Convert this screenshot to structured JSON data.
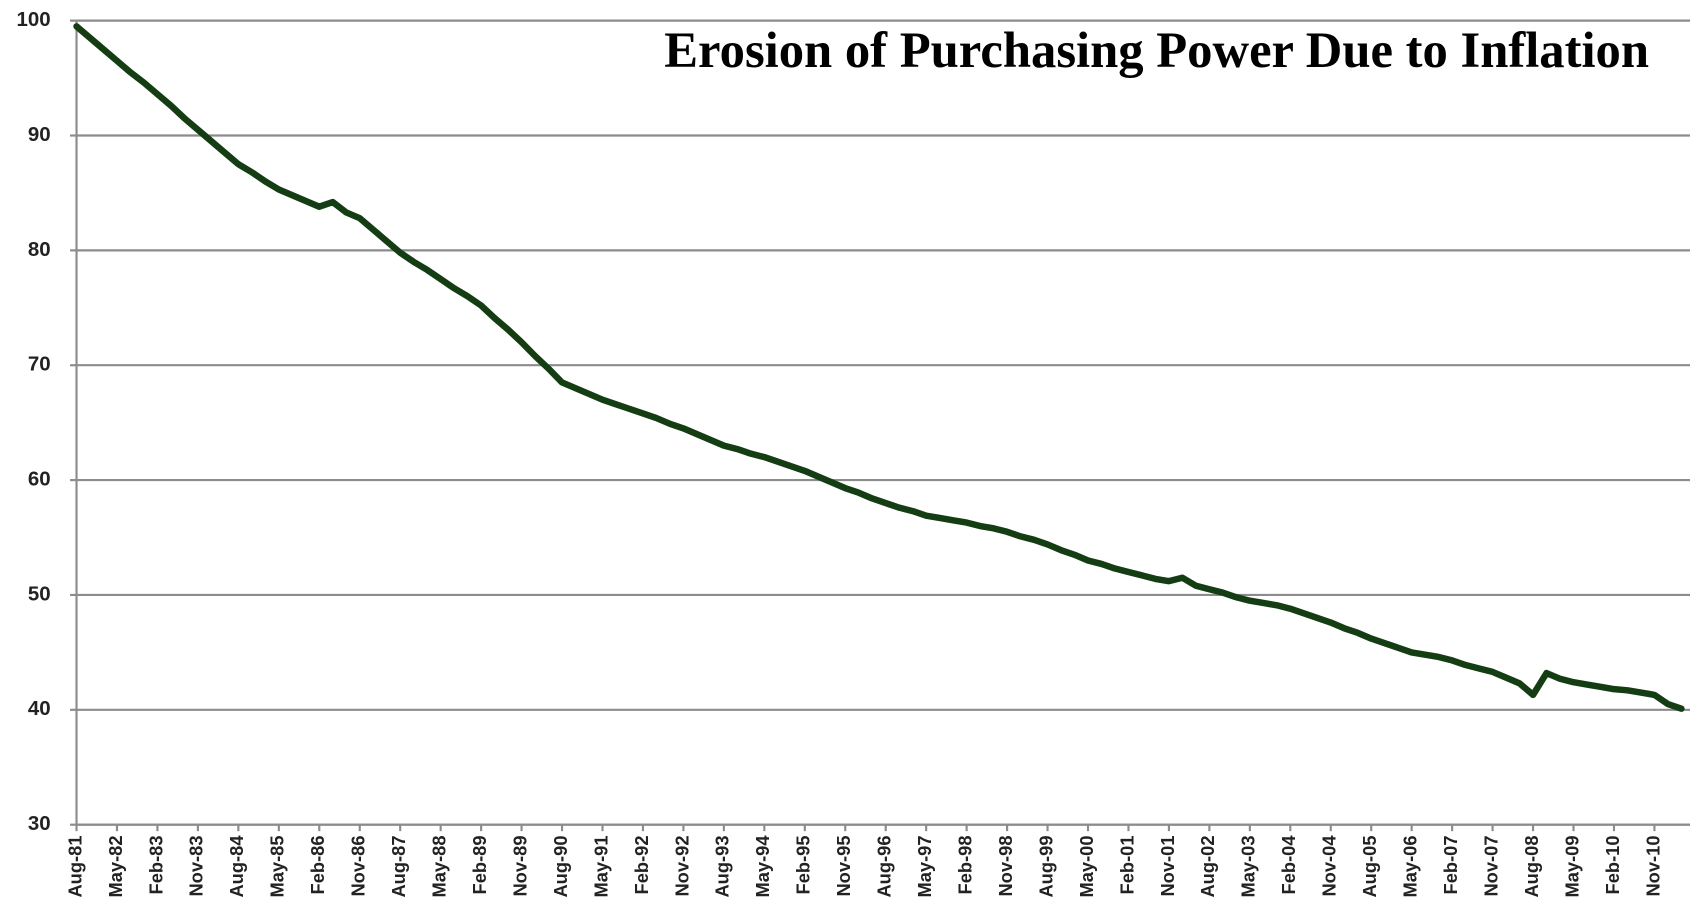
{
  "chart_data": {
    "type": "line",
    "title": "Erosion of Purchasing Power Due to Inflation",
    "categories": [
      "Aug-81",
      null,
      null,
      "May-82",
      null,
      null,
      "Feb-83",
      null,
      null,
      "Nov-83",
      null,
      null,
      "Aug-84",
      null,
      null,
      "May-85",
      null,
      null,
      "Feb-86",
      null,
      null,
      "Nov-86",
      null,
      null,
      "Aug-87",
      null,
      null,
      "May-88",
      null,
      null,
      "Feb-89",
      null,
      null,
      "Nov-89",
      null,
      null,
      "Aug-90",
      null,
      null,
      "May-91",
      null,
      null,
      "Feb-92",
      null,
      null,
      "Nov-92",
      null,
      null,
      "Aug-93",
      null,
      null,
      "May-94",
      null,
      null,
      "Feb-95",
      null,
      null,
      "Nov-95",
      null,
      null,
      "Aug-96",
      null,
      null,
      "May-97",
      null,
      null,
      "Feb-98",
      null,
      null,
      "Nov-98",
      null,
      null,
      "Aug-99",
      null,
      null,
      "May-00",
      null,
      null,
      "Feb-01",
      null,
      null,
      "Nov-01",
      null,
      null,
      "Aug-02",
      null,
      null,
      "May-03",
      null,
      null,
      "Feb-04",
      null,
      null,
      "Nov-04",
      null,
      null,
      "Aug-05",
      null,
      null,
      "May-06",
      null,
      null,
      "Feb-07",
      null,
      null,
      "Nov-07",
      null,
      null,
      "Aug-08",
      null,
      null,
      "May-09",
      null,
      null,
      "Feb-10",
      null,
      null,
      "Nov-10",
      null,
      null
    ],
    "values": [
      99.5,
      98.5,
      97.5,
      96.5,
      95.5,
      94.6,
      93.6,
      92.6,
      91.5,
      90.5,
      89.5,
      88.5,
      87.5,
      86.8,
      86.0,
      85.3,
      84.8,
      84.3,
      83.8,
      84.2,
      83.3,
      82.8,
      81.8,
      80.8,
      79.8,
      79.0,
      78.3,
      77.5,
      76.7,
      76.0,
      75.2,
      74.1,
      73.1,
      72.0,
      70.8,
      69.7,
      68.5,
      68.0,
      67.5,
      67.0,
      66.6,
      66.2,
      65.8,
      65.4,
      64.9,
      64.5,
      64.0,
      63.5,
      63.0,
      62.7,
      62.3,
      62.0,
      61.6,
      61.2,
      60.8,
      60.3,
      59.8,
      59.3,
      58.9,
      58.4,
      58.0,
      57.6,
      57.3,
      56.9,
      56.7,
      56.5,
      56.3,
      56.0,
      55.8,
      55.5,
      55.1,
      54.8,
      54.4,
      53.9,
      53.5,
      53.0,
      52.7,
      52.3,
      52.0,
      51.7,
      51.4,
      51.2,
      51.5,
      50.8,
      50.5,
      50.2,
      49.8,
      49.5,
      49.3,
      49.1,
      48.8,
      48.4,
      48.0,
      47.6,
      47.1,
      46.7,
      46.2,
      45.8,
      45.4,
      45.0,
      44.8,
      44.6,
      44.3,
      43.9,
      43.6,
      43.3,
      42.8,
      42.3,
      41.3,
      43.2,
      42.7,
      42.4,
      42.2,
      42.0,
      41.8,
      41.7,
      41.5,
      41.3,
      40.5,
      40.1
    ],
    "color": "#143d14",
    "ylim": [
      30,
      100
    ],
    "yticks": [
      30,
      40,
      50,
      60,
      70,
      80,
      90,
      100
    ],
    "grid": true
  }
}
